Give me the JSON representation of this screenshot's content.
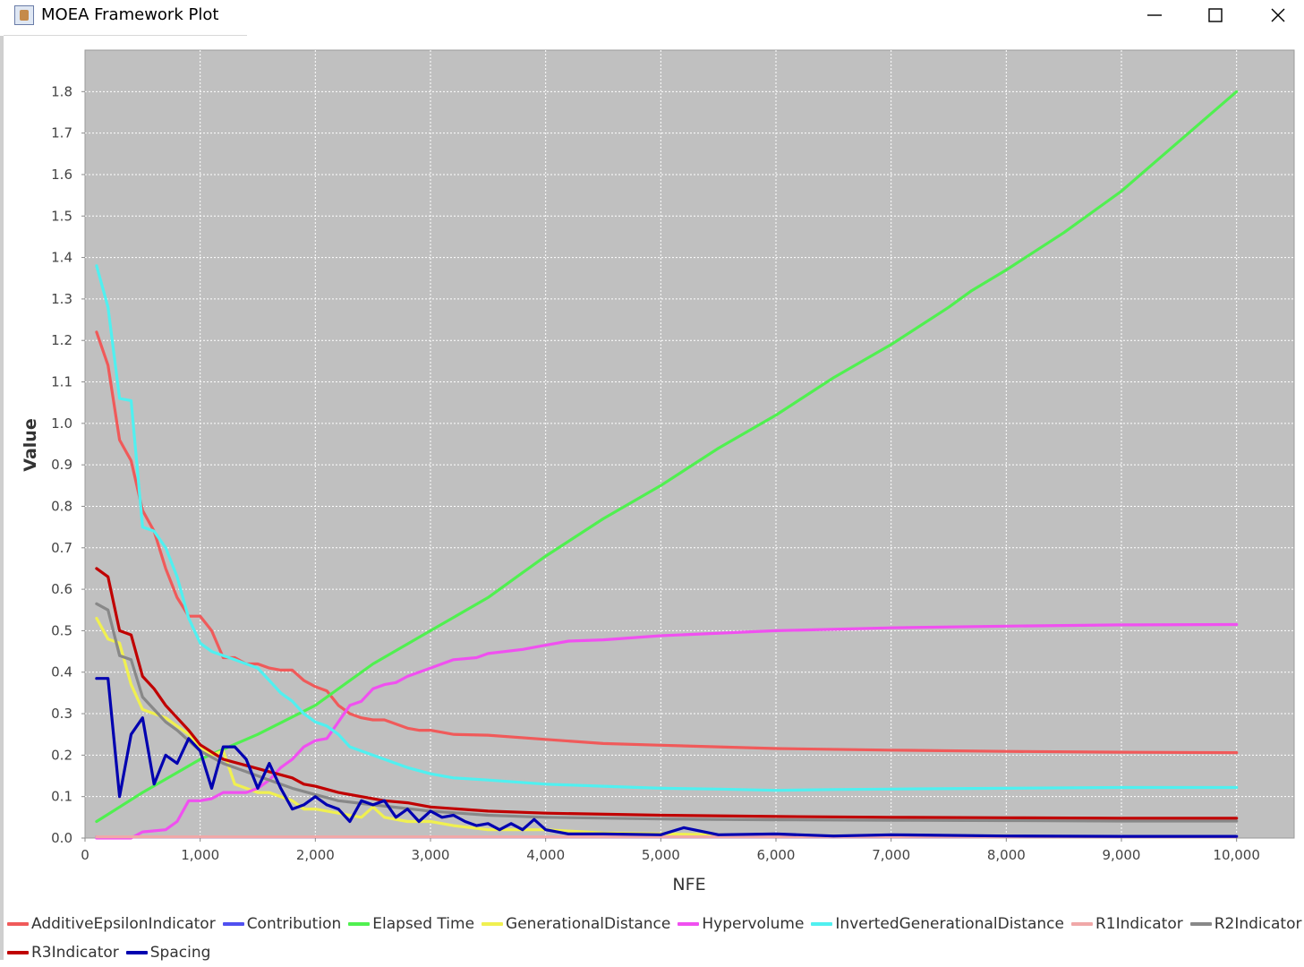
{
  "window": {
    "title": "MOEA Framework Plot",
    "controls": [
      "minimize",
      "maximize",
      "close"
    ]
  },
  "chart_data": {
    "type": "line",
    "title": "",
    "xlabel": "NFE",
    "ylabel": "Value",
    "xlim": [
      0,
      10500
    ],
    "ylim": [
      0,
      1.9
    ],
    "grid": true,
    "legend_placement": "bottom",
    "x_ticks": [
      0,
      1000,
      2000,
      3000,
      4000,
      5000,
      6000,
      7000,
      8000,
      9000,
      10000
    ],
    "x_tick_labels": [
      "0",
      "1,000",
      "2,000",
      "3,000",
      "4,000",
      "5,000",
      "6,000",
      "7,000",
      "8,000",
      "9,000",
      "10,000"
    ],
    "y_ticks": [
      0.0,
      0.1,
      0.2,
      0.3,
      0.4,
      0.5,
      0.6,
      0.7,
      0.8,
      0.9,
      1.0,
      1.1,
      1.2,
      1.3,
      1.4,
      1.5,
      1.6,
      1.7,
      1.8
    ],
    "y_tick_labels": [
      "0.0",
      "0.1",
      "0.2",
      "0.3",
      "0.4",
      "0.5",
      "0.6",
      "0.7",
      "0.8",
      "0.9",
      "1.0",
      "1.1",
      "1.2",
      "1.3",
      "1.4",
      "1.5",
      "1.6",
      "1.7",
      "1.8"
    ],
    "series": [
      {
        "name": "AdditiveEpsilonIndicator",
        "color": "#f05a5a",
        "x": [
          100,
          200,
          300,
          400,
          500,
          600,
          700,
          800,
          900,
          1000,
          1100,
          1200,
          1300,
          1400,
          1500,
          1600,
          1700,
          1800,
          1900,
          2000,
          2100,
          2200,
          2300,
          2400,
          2500,
          2600,
          2700,
          2800,
          2900,
          3000,
          3200,
          3500,
          4000,
          4500,
          5000,
          6000,
          7000,
          8000,
          9000,
          10000
        ],
        "values": [
          1.22,
          1.14,
          0.96,
          0.91,
          0.79,
          0.74,
          0.65,
          0.58,
          0.535,
          0.535,
          0.5,
          0.435,
          0.435,
          0.42,
          0.42,
          0.41,
          0.405,
          0.405,
          0.38,
          0.365,
          0.355,
          0.32,
          0.3,
          0.29,
          0.285,
          0.285,
          0.275,
          0.265,
          0.26,
          0.26,
          0.25,
          0.248,
          0.238,
          0.228,
          0.224,
          0.216,
          0.212,
          0.209,
          0.207,
          0.206
        ]
      },
      {
        "name": "Contribution",
        "color": "#5050f0",
        "x": [
          100,
          10000
        ],
        "values": [
          0.003,
          0.003
        ]
      },
      {
        "name": "Elapsed Time",
        "color": "#50f050",
        "x": [
          100,
          500,
          1000,
          1500,
          2000,
          2500,
          3000,
          3500,
          3800,
          4000,
          4500,
          5000,
          5500,
          6000,
          6500,
          7000,
          7500,
          7700,
          8000,
          8500,
          9000,
          9500,
          10000
        ],
        "values": [
          0.04,
          0.11,
          0.19,
          0.25,
          0.32,
          0.42,
          0.5,
          0.58,
          0.64,
          0.68,
          0.77,
          0.85,
          0.94,
          1.02,
          1.11,
          1.19,
          1.28,
          1.32,
          1.37,
          1.46,
          1.56,
          1.68,
          1.8
        ]
      },
      {
        "name": "GenerationalDistance",
        "color": "#f0f050",
        "x": [
          100,
          200,
          300,
          400,
          500,
          600,
          700,
          800,
          900,
          1000,
          1100,
          1200,
          1300,
          1400,
          1500,
          1600,
          1700,
          1800,
          1900,
          2000,
          2200,
          2400,
          2500,
          2600,
          2800,
          3000,
          3200,
          3500,
          4000,
          4500,
          5000,
          6000,
          7000,
          8000,
          9000,
          10000
        ],
        "values": [
          0.53,
          0.48,
          0.47,
          0.37,
          0.31,
          0.3,
          0.29,
          0.27,
          0.25,
          0.22,
          0.2,
          0.21,
          0.13,
          0.12,
          0.11,
          0.11,
          0.1,
          0.09,
          0.07,
          0.07,
          0.06,
          0.05,
          0.075,
          0.05,
          0.04,
          0.04,
          0.03,
          0.02,
          0.02,
          0.012,
          0.01,
          0.006,
          0.004,
          0.003,
          0.003,
          0.003
        ]
      },
      {
        "name": "Hypervolume",
        "color": "#f050f0",
        "x": [
          100,
          400,
          500,
          700,
          800,
          900,
          1000,
          1100,
          1200,
          1400,
          1500,
          1600,
          1700,
          1800,
          1900,
          2000,
          2100,
          2200,
          2300,
          2400,
          2500,
          2600,
          2700,
          2800,
          3000,
          3200,
          3400,
          3500,
          3800,
          4000,
          4200,
          4500,
          5000,
          6000,
          7000,
          8000,
          9000,
          10000
        ],
        "values": [
          0.0,
          0.0,
          0.015,
          0.02,
          0.04,
          0.09,
          0.09,
          0.095,
          0.11,
          0.11,
          0.12,
          0.14,
          0.17,
          0.19,
          0.22,
          0.235,
          0.24,
          0.28,
          0.32,
          0.33,
          0.36,
          0.37,
          0.375,
          0.39,
          0.41,
          0.43,
          0.435,
          0.445,
          0.455,
          0.465,
          0.475,
          0.478,
          0.488,
          0.5,
          0.507,
          0.511,
          0.514,
          0.515
        ]
      },
      {
        "name": "InvertedGenerationalDistance",
        "color": "#50f0f0",
        "x": [
          100,
          200,
          300,
          400,
          500,
          600,
          700,
          800,
          900,
          1000,
          1100,
          1200,
          1300,
          1400,
          1500,
          1600,
          1700,
          1800,
          1900,
          2000,
          2100,
          2200,
          2300,
          2400,
          2500,
          2600,
          2700,
          2800,
          3000,
          3200,
          3500,
          4000,
          4500,
          5000,
          5500,
          6000,
          6500,
          7000,
          8000,
          9000,
          10000
        ],
        "values": [
          1.38,
          1.28,
          1.06,
          1.055,
          0.75,
          0.74,
          0.7,
          0.63,
          0.53,
          0.47,
          0.45,
          0.44,
          0.43,
          0.42,
          0.41,
          0.38,
          0.35,
          0.33,
          0.3,
          0.28,
          0.27,
          0.25,
          0.22,
          0.21,
          0.2,
          0.19,
          0.18,
          0.17,
          0.155,
          0.145,
          0.14,
          0.13,
          0.125,
          0.12,
          0.118,
          0.115,
          0.117,
          0.118,
          0.12,
          0.122,
          0.122
        ]
      },
      {
        "name": "R1Indicator",
        "color": "#f0a8a8",
        "x": [
          100,
          10000
        ],
        "values": [
          0.003,
          0.003
        ]
      },
      {
        "name": "R2Indicator",
        "color": "#888888",
        "x": [
          100,
          200,
          300,
          400,
          500,
          600,
          700,
          800,
          900,
          1000,
          1200,
          1400,
          1600,
          1800,
          2000,
          2200,
          2500,
          3000,
          3500,
          4000,
          5000,
          6000,
          7000,
          8000,
          9000,
          10000
        ],
        "values": [
          0.565,
          0.55,
          0.44,
          0.43,
          0.34,
          0.31,
          0.28,
          0.26,
          0.235,
          0.21,
          0.18,
          0.16,
          0.14,
          0.12,
          0.105,
          0.09,
          0.08,
          0.065,
          0.055,
          0.05,
          0.046,
          0.044,
          0.043,
          0.042,
          0.041,
          0.041
        ]
      },
      {
        "name": "R3Indicator",
        "color": "#c00000",
        "x": [
          100,
          200,
          300,
          400,
          500,
          600,
          700,
          800,
          900,
          1000,
          1200,
          1400,
          1600,
          1800,
          1900,
          2000,
          2200,
          2400,
          2600,
          2800,
          3000,
          3500,
          4000,
          5000,
          6000,
          7000,
          8000,
          9000,
          10000
        ],
        "values": [
          0.65,
          0.63,
          0.5,
          0.49,
          0.39,
          0.36,
          0.32,
          0.29,
          0.26,
          0.225,
          0.19,
          0.175,
          0.16,
          0.145,
          0.13,
          0.125,
          0.11,
          0.1,
          0.09,
          0.085,
          0.075,
          0.065,
          0.06,
          0.055,
          0.052,
          0.05,
          0.049,
          0.048,
          0.048
        ]
      },
      {
        "name": "Spacing",
        "color": "#0000b0",
        "x": [
          100,
          200,
          300,
          400,
          500,
          600,
          700,
          800,
          900,
          1000,
          1100,
          1200,
          1300,
          1400,
          1500,
          1600,
          1700,
          1800,
          1900,
          2000,
          2100,
          2200,
          2300,
          2400,
          2500,
          2600,
          2700,
          2800,
          2900,
          3000,
          3100,
          3200,
          3300,
          3400,
          3500,
          3600,
          3700,
          3800,
          3900,
          4000,
          4200,
          4500,
          5000,
          5200,
          5500,
          6000,
          6500,
          7000,
          8000,
          9000,
          10000
        ],
        "values": [
          0.385,
          0.385,
          0.1,
          0.25,
          0.29,
          0.13,
          0.2,
          0.18,
          0.24,
          0.21,
          0.12,
          0.22,
          0.22,
          0.19,
          0.12,
          0.18,
          0.12,
          0.07,
          0.08,
          0.1,
          0.08,
          0.07,
          0.04,
          0.09,
          0.08,
          0.09,
          0.05,
          0.07,
          0.04,
          0.065,
          0.05,
          0.055,
          0.04,
          0.03,
          0.035,
          0.02,
          0.035,
          0.02,
          0.045,
          0.02,
          0.01,
          0.01,
          0.008,
          0.025,
          0.008,
          0.01,
          0.005,
          0.008,
          0.005,
          0.004,
          0.004
        ]
      }
    ]
  }
}
